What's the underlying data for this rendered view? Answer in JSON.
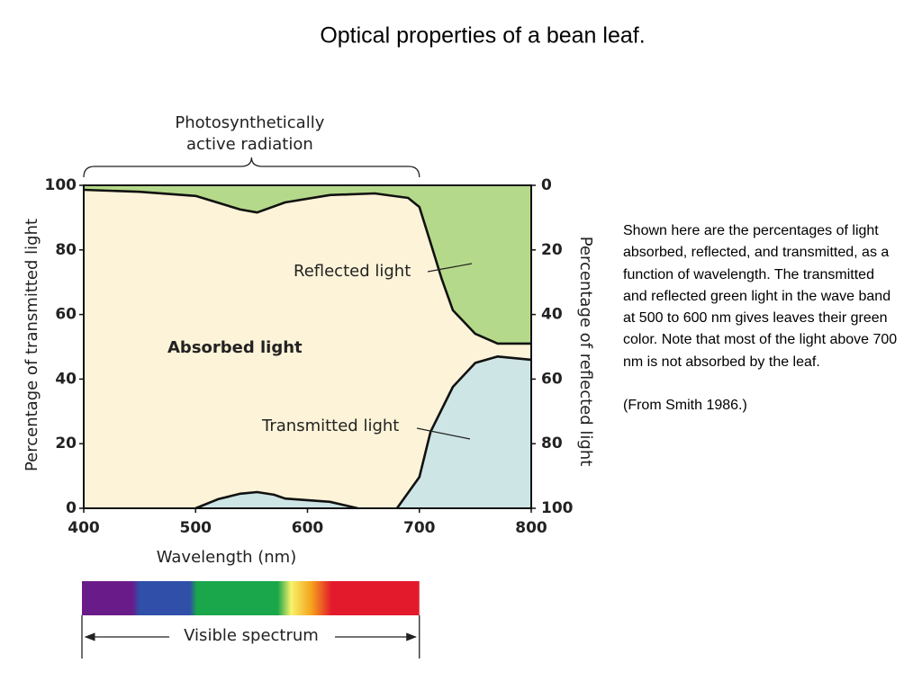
{
  "chart_data": {
    "type": "area",
    "title": "Optical properties of a bean leaf.",
    "xlabel": "Wavelength (nm)",
    "ylabel": "Percentage of transmitted light",
    "y2label": "Percentage of reflected light",
    "xlim": [
      400,
      800
    ],
    "xticks": [
      400,
      500,
      600,
      700,
      800
    ],
    "ylim": [
      0,
      100
    ],
    "yticks": [
      0,
      20,
      40,
      60,
      80,
      100
    ],
    "y2lim": [
      100,
      0
    ],
    "y2ticks": [
      0,
      20,
      40,
      60,
      80,
      100
    ],
    "series": [
      {
        "name": "Transmitted light",
        "color": "#cde5e4",
        "axis": "y",
        "x": [
          500,
          520,
          540,
          555,
          570,
          580,
          620,
          645,
          660,
          680,
          700,
          710,
          730,
          750,
          770,
          800
        ],
        "values": [
          0,
          2.8,
          4.5,
          5,
          4.2,
          3,
          2,
          0,
          null,
          0,
          9.7,
          23.7,
          37.6,
          45,
          47,
          46
        ]
      },
      {
        "name": "Reflected light",
        "color": "#b5d98a",
        "axis": "y2",
        "x": [
          400,
          450,
          500,
          540,
          555,
          580,
          620,
          660,
          690,
          700,
          710,
          720,
          730,
          750,
          770,
          800
        ],
        "values": [
          1.4,
          2,
          3.3,
          7.5,
          8.4,
          5.3,
          3,
          2.5,
          3.9,
          6.7,
          17.8,
          29,
          38.7,
          46,
          49,
          49
        ]
      }
    ],
    "area_label": "Absorbed light",
    "par_label": [
      "Photosynthetically",
      "active radiation"
    ],
    "par_range": [
      400,
      700
    ],
    "spectrum_label": "Visible spectrum",
    "caption": "Shown here are the percentages of light absorbed, reflected, and transmitted, as a function of wavelength. The transmitted and reflected green light in the wave band at 500 to 600 nm gives leaves their green color. Note that most of the light above 700 nm is not absorbed by the leaf.",
    "source": "(From Smith 1986.)"
  }
}
